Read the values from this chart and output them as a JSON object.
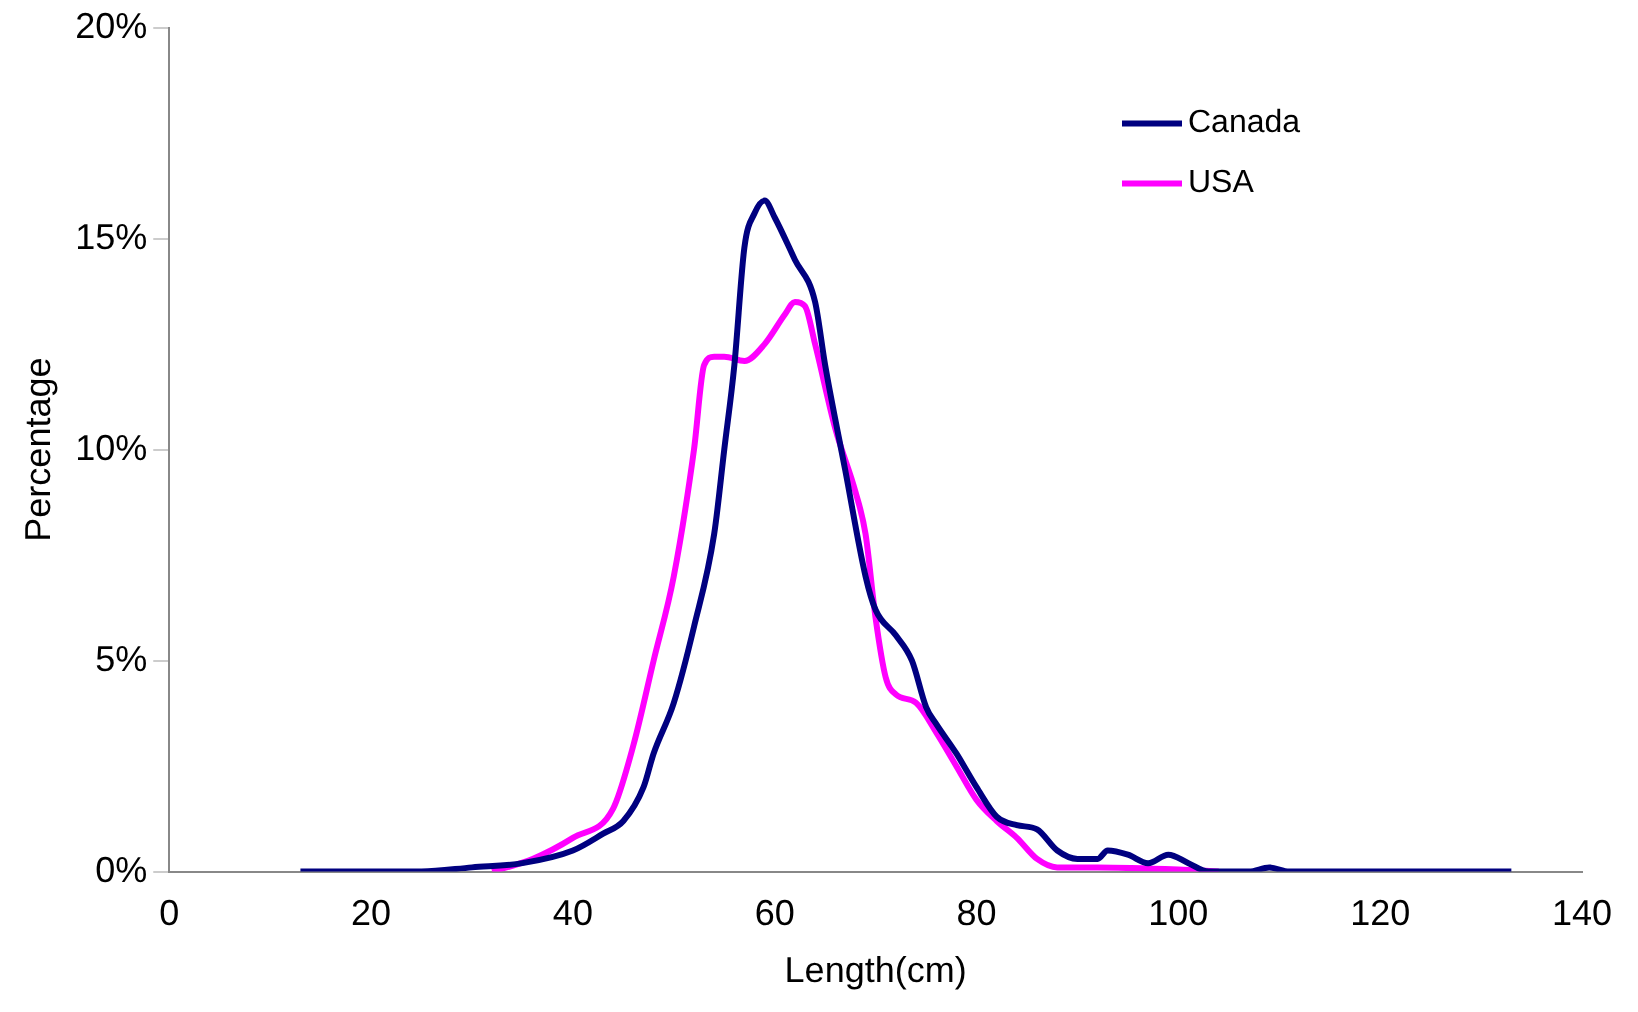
{
  "chart_data": {
    "type": "line",
    "xlabel": "Length(cm)",
    "ylabel": "Percentage",
    "xlim": [
      0,
      140
    ],
    "xticks": [
      0,
      20,
      40,
      60,
      80,
      100,
      120,
      140
    ],
    "ylim": [
      0,
      20
    ],
    "yticks": [
      {
        "value": 0,
        "label": "0%"
      },
      {
        "value": 5,
        "label": "5%"
      },
      {
        "value": 10,
        "label": "10%"
      },
      {
        "value": 15,
        "label": "15%"
      },
      {
        "value": 20,
        "label": "20%"
      }
    ],
    "grid": false,
    "legend": "top right",
    "marker": "none",
    "line_style": "solid",
    "series": [
      {
        "name": "Canada",
        "color": "#000080",
        "x": [
          13,
          25,
          30,
          35,
          40,
          43,
          45,
          47,
          48,
          50,
          52,
          54,
          55,
          56,
          57,
          58,
          59,
          60,
          62,
          64,
          65,
          67,
          69,
          70,
          72,
          73.6,
          75,
          76,
          78,
          80,
          82,
          84,
          86,
          88,
          90,
          92,
          93,
          95,
          97,
          99,
          101,
          103,
          107,
          109,
          111,
          133
        ],
        "values": [
          0,
          0,
          0.1,
          0.2,
          0.5,
          0.9,
          1.2,
          2,
          2.8,
          4,
          5.8,
          8,
          10,
          12,
          14.8,
          15.6,
          15.9,
          15.5,
          14.5,
          13.5,
          12,
          9.5,
          7,
          6.2,
          5.6,
          5,
          3.9,
          3.5,
          2.8,
          2,
          1.3,
          1.1,
          1,
          0.5,
          0.3,
          0.3,
          0.5,
          0.4,
          0.2,
          0.4,
          0.2,
          0,
          0,
          0.1,
          0,
          0
        ]
      },
      {
        "name": "USA",
        "color": "#ff00ff",
        "x": [
          32,
          36,
          40,
          44,
          46,
          48,
          50,
          52,
          53,
          54,
          55,
          57,
          59,
          61,
          62,
          63,
          64,
          66,
          68,
          69,
          70,
          71,
          72,
          74,
          76,
          78,
          80,
          82,
          84,
          86,
          88,
          92,
          100,
          104
        ],
        "values": [
          0,
          0.3,
          0.8,
          1.5,
          3,
          5,
          7,
          10,
          12,
          12.2,
          12.2,
          12.1,
          12.5,
          13.2,
          13.5,
          13.4,
          12.5,
          10.5,
          9,
          8,
          6,
          4.6,
          4.2,
          4,
          3.3,
          2.5,
          1.7,
          1.2,
          0.8,
          0.3,
          0.1,
          0.1,
          0.05,
          0
        ]
      }
    ]
  }
}
